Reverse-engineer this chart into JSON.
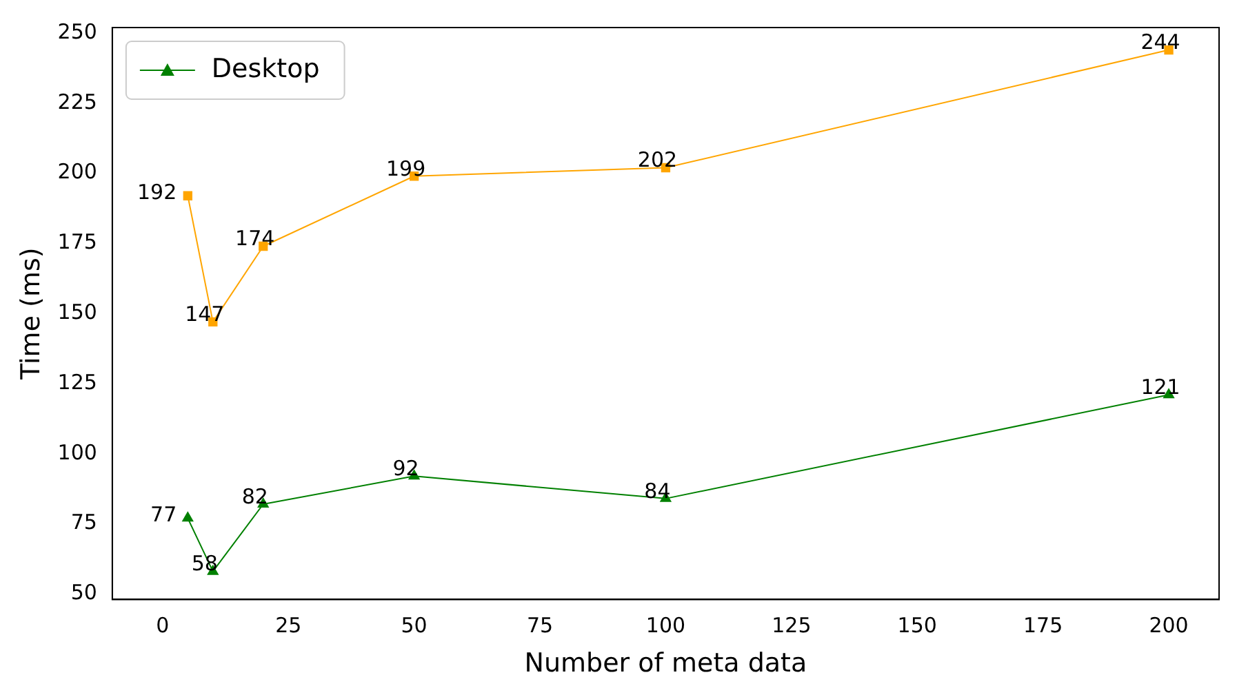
{
  "chart_data": {
    "type": "line",
    "xlabel": "Number of meta data",
    "ylabel": "Time (ms)",
    "x": [
      5,
      10,
      20,
      50,
      100,
      200
    ],
    "series": [
      {
        "name": "Desktop",
        "color": "#008000",
        "marker": "triangle",
        "values": [
          77,
          58,
          82,
          92,
          84,
          121
        ]
      },
      {
        "color": "#ffa500",
        "marker": "square",
        "values": [
          192,
          147,
          174,
          199,
          202,
          244
        ]
      }
    ],
    "xlim": [
      -10,
      210
    ],
    "xticks": [
      0,
      25,
      50,
      75,
      100,
      125,
      150,
      175,
      200
    ],
    "ylim": [
      48,
      252
    ],
    "yticks": [
      50,
      75,
      100,
      125,
      150,
      175,
      200,
      225,
      250
    ],
    "grid": false,
    "legend": "top left",
    "data_labels": true
  }
}
